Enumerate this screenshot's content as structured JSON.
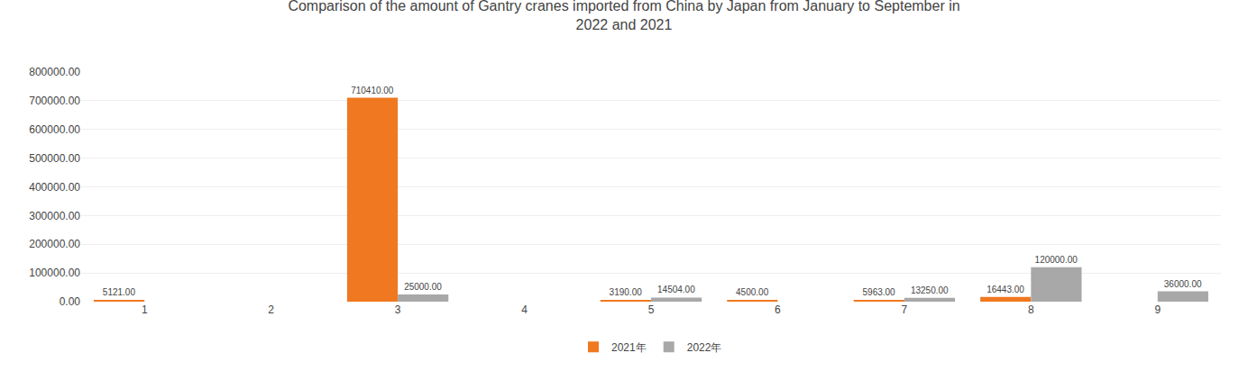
{
  "chart_data": {
    "type": "bar",
    "title": "Comparison of the amount of Gantry cranes imported from China by Japan from January to September in\n2022 and 2021",
    "categories": [
      "1",
      "2",
      "3",
      "4",
      "5",
      "6",
      "7",
      "8",
      "9"
    ],
    "series": [
      {
        "name": "2021年",
        "color": "#F07820",
        "values": [
          5121.0,
          0,
          710410.0,
          0,
          3190.0,
          4500.0,
          5963.0,
          16443.0,
          0
        ],
        "value_labels": [
          "5121.00",
          null,
          "710410.00",
          null,
          "3190.00",
          "4500.00",
          "5963.00",
          "16443.00",
          null
        ]
      },
      {
        "name": "2022年",
        "color": "#A8A8A8",
        "values": [
          0,
          0,
          25000.0,
          0,
          14504.0,
          0,
          13250.0,
          120000.0,
          36000.0
        ],
        "value_labels": [
          null,
          null,
          "25000.00",
          null,
          "14504.00",
          null,
          "13250.00",
          "120000.00",
          "36000.00"
        ]
      }
    ],
    "ylim": [
      0,
      800000
    ],
    "yticks": [
      {
        "value": 0,
        "label": "0.00"
      },
      {
        "value": 100000,
        "label": "100000.00"
      },
      {
        "value": 200000,
        "label": "200000.00"
      },
      {
        "value": 300000,
        "label": "300000.00"
      },
      {
        "value": 400000,
        "label": "400000.00"
      },
      {
        "value": 500000,
        "label": "500000.00"
      },
      {
        "value": 600000,
        "label": "600000.00"
      },
      {
        "value": 700000,
        "label": "700000.00"
      },
      {
        "value": 800000,
        "label": "800000.00"
      }
    ],
    "grid": true,
    "legend": "bottom",
    "data_labels": true
  }
}
